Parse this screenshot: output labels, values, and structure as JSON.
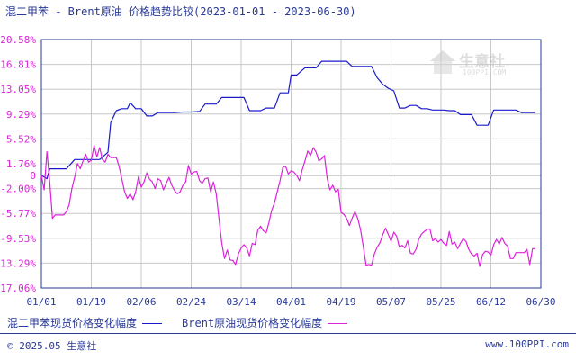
{
  "title": "混二甲苯 - Brent原油 价格趋势比较(2023-01-01 - 2023-06-30)",
  "colors": {
    "series1": "#1a1acc",
    "series2": "#dd22dd",
    "grid": "#c8c8c8",
    "axis": "#2a3a99",
    "zero": "#888888"
  },
  "watermark": {
    "name": "生意社",
    "site": "100PPI.COM"
  },
  "chart_data": {
    "type": "line",
    "title": "混二甲苯 - Brent原油 价格趋势比较(2023-01-01 - 2023-06-30)",
    "xlabel": "",
    "ylabel": "",
    "x_ticks": [
      "01/01",
      "01/19",
      "02/06",
      "02/24",
      "03/14",
      "04/01",
      "04/19",
      "05/07",
      "05/25",
      "06/12",
      "06/30"
    ],
    "y_ticks": [
      "20.58%",
      "16.81%",
      "13.05%",
      "9.29%",
      "5.52%",
      "1.76%",
      "-2.00%",
      "-5.77%",
      "-9.53%",
      "-13.29%",
      "-17.06%"
    ],
    "zero_label": "0",
    "ylim": [
      -17.06,
      20.58
    ],
    "xlim": [
      0,
      180
    ],
    "grid": true,
    "legend_position": "bottom",
    "series": [
      {
        "name": "混二甲苯现货价格变化幅度",
        "color": "#1a1acc",
        "points": [
          [
            0,
            0
          ],
          [
            2,
            -0.5
          ],
          [
            3,
            1.0
          ],
          [
            6,
            1.0
          ],
          [
            9,
            1.0
          ],
          [
            12,
            2.4
          ],
          [
            15,
            2.4
          ],
          [
            18,
            2.4
          ],
          [
            21,
            2.4
          ],
          [
            24,
            3.5
          ],
          [
            25,
            8.0
          ],
          [
            27,
            9.8
          ],
          [
            29,
            10.1
          ],
          [
            31,
            10.1
          ],
          [
            32,
            11.0
          ],
          [
            34,
            10.1
          ],
          [
            36,
            10.1
          ],
          [
            38,
            9.0
          ],
          [
            40,
            9.0
          ],
          [
            42,
            9.5
          ],
          [
            45,
            9.5
          ],
          [
            48,
            9.5
          ],
          [
            51,
            9.6
          ],
          [
            54,
            9.6
          ],
          [
            57,
            9.7
          ],
          [
            59,
            10.8
          ],
          [
            61,
            10.8
          ],
          [
            63,
            10.8
          ],
          [
            65,
            11.8
          ],
          [
            67,
            11.8
          ],
          [
            69,
            11.8
          ],
          [
            71,
            11.8
          ],
          [
            73,
            11.8
          ],
          [
            75,
            9.8
          ],
          [
            77,
            9.8
          ],
          [
            79,
            9.8
          ],
          [
            81,
            10.2
          ],
          [
            84,
            10.2
          ],
          [
            86,
            12.5
          ],
          [
            87,
            12.5
          ],
          [
            89,
            12.5
          ],
          [
            90,
            15.2
          ],
          [
            92,
            15.2
          ],
          [
            95,
            16.3
          ],
          [
            97,
            16.3
          ],
          [
            99,
            16.3
          ],
          [
            101,
            17.3
          ],
          [
            104,
            17.3
          ],
          [
            107,
            17.3
          ],
          [
            110,
            17.3
          ],
          [
            112,
            16.5
          ],
          [
            115,
            16.5
          ],
          [
            117,
            16.5
          ],
          [
            119,
            16.5
          ],
          [
            121,
            14.8
          ],
          [
            123,
            13.8
          ],
          [
            125,
            13.2
          ],
          [
            127,
            12.8
          ],
          [
            129,
            10.2
          ],
          [
            131,
            10.2
          ],
          [
            133,
            10.6
          ],
          [
            135,
            10.6
          ],
          [
            137,
            10.1
          ],
          [
            139,
            10.1
          ],
          [
            141,
            9.9
          ],
          [
            143,
            9.9
          ],
          [
            145,
            9.9
          ],
          [
            147,
            9.8
          ],
          [
            149,
            9.8
          ],
          [
            151,
            9.2
          ],
          [
            153,
            9.2
          ],
          [
            155,
            9.2
          ],
          [
            157,
            7.6
          ],
          [
            159,
            7.6
          ],
          [
            161,
            7.6
          ],
          [
            163,
            9.9
          ],
          [
            165,
            9.9
          ],
          [
            167,
            9.9
          ],
          [
            169,
            9.9
          ],
          [
            171,
            9.9
          ],
          [
            173,
            9.5
          ],
          [
            176,
            9.5
          ],
          [
            178,
            9.5
          ]
        ]
      },
      {
        "name": "Brent原油现货价格变化幅度",
        "color": "#dd22dd",
        "points": [
          [
            0,
            0
          ],
          [
            1,
            -2.2
          ],
          [
            2,
            3.6
          ],
          [
            3,
            -1.0
          ],
          [
            4,
            -6.5
          ],
          [
            5,
            -6.0
          ],
          [
            6,
            -6.0
          ],
          [
            8,
            -6.0
          ],
          [
            9,
            -5.5
          ],
          [
            10,
            -4.5
          ],
          [
            11,
            -2.0
          ],
          [
            12,
            -0.3
          ],
          [
            13,
            1.8
          ],
          [
            14,
            1.0
          ],
          [
            15,
            2.2
          ],
          [
            16,
            3.2
          ],
          [
            17,
            2.0
          ],
          [
            18,
            2.3
          ],
          [
            19,
            4.5
          ],
          [
            20,
            2.8
          ],
          [
            21,
            4.2
          ],
          [
            22,
            2.4
          ],
          [
            23,
            2.0
          ],
          [
            24,
            3.2
          ],
          [
            25,
            2.7
          ],
          [
            26,
            2.7
          ],
          [
            27,
            2.7
          ],
          [
            28,
            1.4
          ],
          [
            29,
            -0.5
          ],
          [
            30,
            -2.5
          ],
          [
            31,
            -3.5
          ],
          [
            32,
            -2.8
          ],
          [
            33,
            -3.7
          ],
          [
            34,
            -2.5
          ],
          [
            35,
            -0.2
          ],
          [
            36,
            -1.8
          ],
          [
            37,
            -1.0
          ],
          [
            38,
            0.4
          ],
          [
            39,
            -0.6
          ],
          [
            40,
            -1.0
          ],
          [
            41,
            -2.0
          ],
          [
            42,
            -0.5
          ],
          [
            43,
            -0.8
          ],
          [
            44,
            -2.2
          ],
          [
            45,
            -1.2
          ],
          [
            46,
            -0.3
          ],
          [
            47,
            -1.5
          ],
          [
            48,
            -2.3
          ],
          [
            49,
            -2.8
          ],
          [
            50,
            -2.5
          ],
          [
            51,
            -1.5
          ],
          [
            52,
            -1.0
          ],
          [
            53,
            1.5
          ],
          [
            54,
            0.2
          ],
          [
            55,
            0.5
          ],
          [
            56,
            0.6
          ],
          [
            57,
            -0.8
          ],
          [
            58,
            -1.2
          ],
          [
            59,
            -0.5
          ],
          [
            60,
            -0.4
          ],
          [
            61,
            -2.5
          ],
          [
            62,
            -1.0
          ],
          [
            63,
            -2.8
          ],
          [
            64,
            -6.5
          ],
          [
            65,
            -10.2
          ],
          [
            66,
            -12.6
          ],
          [
            67,
            -11.3
          ],
          [
            68,
            -12.8
          ],
          [
            69,
            -12.9
          ],
          [
            70,
            -13.5
          ],
          [
            71,
            -11.9
          ],
          [
            72,
            -11.0
          ],
          [
            73,
            -10.5
          ],
          [
            74,
            -11.0
          ],
          [
            75,
            -12.2
          ],
          [
            76,
            -10.3
          ],
          [
            77,
            -10.5
          ],
          [
            78,
            -8.3
          ],
          [
            79,
            -7.7
          ],
          [
            80,
            -8.4
          ],
          [
            81,
            -8.7
          ],
          [
            82,
            -7.2
          ],
          [
            83,
            -5.3
          ],
          [
            84,
            -4.2
          ],
          [
            85,
            -2.5
          ],
          [
            86,
            -0.8
          ],
          [
            87,
            1.2
          ],
          [
            88,
            1.4
          ],
          [
            89,
            0.2
          ],
          [
            90,
            0.7
          ],
          [
            91,
            0.5
          ],
          [
            92,
            0.0
          ],
          [
            93,
            -0.8
          ],
          [
            94,
            0.8
          ],
          [
            95,
            2.2
          ],
          [
            96,
            3.7
          ],
          [
            97,
            3.0
          ],
          [
            98,
            4.2
          ],
          [
            99,
            3.5
          ],
          [
            100,
            2.2
          ],
          [
            101,
            2.5
          ],
          [
            102,
            3.0
          ],
          [
            103,
            -0.5
          ],
          [
            104,
            -2.2
          ],
          [
            105,
            -1.5
          ],
          [
            106,
            -2.5
          ],
          [
            107,
            -2.1
          ],
          [
            108,
            -5.6
          ],
          [
            109,
            -5.9
          ],
          [
            110,
            -6.5
          ],
          [
            111,
            -7.6
          ],
          [
            112,
            -6.5
          ],
          [
            113,
            -5.5
          ],
          [
            114,
            -6.5
          ],
          [
            115,
            -8.2
          ],
          [
            116,
            -10.8
          ],
          [
            117,
            -13.6
          ],
          [
            118,
            -13.5
          ],
          [
            119,
            -13.6
          ],
          [
            120,
            -11.9
          ],
          [
            121,
            -10.9
          ],
          [
            122,
            -10.2
          ],
          [
            123,
            -9.0
          ],
          [
            124,
            -8.0
          ],
          [
            125,
            -8.9
          ],
          [
            126,
            -10.0
          ],
          [
            127,
            -8.6
          ],
          [
            128,
            -9.2
          ],
          [
            129,
            -10.9
          ],
          [
            130,
            -10.6
          ],
          [
            131,
            -11.0
          ],
          [
            132,
            -9.9
          ],
          [
            133,
            -11.8
          ],
          [
            134,
            -11.9
          ],
          [
            135,
            -11.2
          ],
          [
            136,
            -9.7
          ],
          [
            137,
            -8.9
          ],
          [
            138,
            -8.5
          ],
          [
            139,
            -8.2
          ],
          [
            140,
            -8.1
          ],
          [
            141,
            -9.9
          ],
          [
            142,
            -9.6
          ],
          [
            143,
            -10.1
          ],
          [
            144,
            -9.7
          ],
          [
            145,
            -10.3
          ],
          [
            146,
            -10.6
          ],
          [
            147,
            -8.5
          ],
          [
            148,
            -10.4
          ],
          [
            149,
            -10.1
          ],
          [
            150,
            -11.1
          ],
          [
            151,
            -10.3
          ],
          [
            152,
            -9.6
          ],
          [
            153,
            -10.0
          ],
          [
            154,
            -11.2
          ],
          [
            155,
            -11.9
          ],
          [
            156,
            -12.2
          ],
          [
            157,
            -11.8
          ],
          [
            158,
            -13.8
          ],
          [
            159,
            -12.0
          ],
          [
            160,
            -11.5
          ],
          [
            161,
            -11.6
          ],
          [
            162,
            -12.1
          ],
          [
            163,
            -10.5
          ],
          [
            164,
            -9.7
          ],
          [
            165,
            -10.4
          ],
          [
            166,
            -9.4
          ],
          [
            167,
            -10.3
          ],
          [
            168,
            -10.7
          ],
          [
            169,
            -12.6
          ],
          [
            170,
            -12.6
          ],
          [
            171,
            -11.7
          ],
          [
            172,
            -11.7
          ],
          [
            173,
            -11.7
          ],
          [
            174,
            -11.7
          ],
          [
            175,
            -11.2
          ],
          [
            176,
            -13.5
          ],
          [
            177,
            -11.1
          ],
          [
            178,
            -11.1
          ]
        ]
      }
    ]
  },
  "footer": {
    "copyright": "© 2025.05 生意社",
    "site": "www.100PPI.com"
  }
}
